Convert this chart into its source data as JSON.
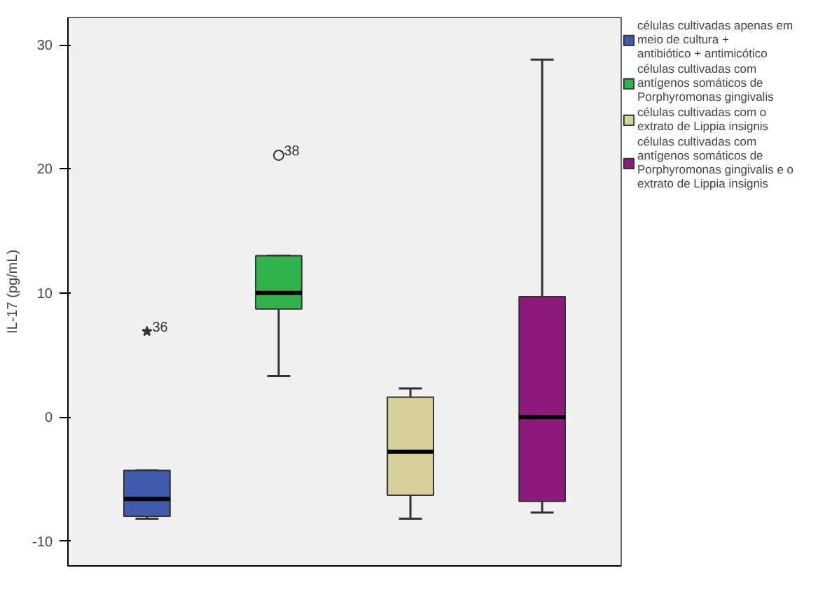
{
  "chart_data": {
    "type": "box",
    "ylabel": "IL-17 (pg/mL)",
    "categories": [
      null,
      null,
      null,
      null
    ],
    "ylim": [
      -12,
      32.2
    ],
    "yticks": [
      -10,
      0,
      10,
      20,
      30
    ],
    "grid": false,
    "legend": "right",
    "tick_labels": "y",
    "series": [
      {
        "name": "células cultivadas apenas em meio de cultura + antibiótico + antimicótico",
        "color": "#3f5bab",
        "marker": "star",
        "boxes": [
          {
            "low": -8.2,
            "q1": -8.0,
            "median": -6.6,
            "q3": -4.3,
            "high": -4.3,
            "outliers": [
              6.9
            ]
          },
          null,
          null,
          null
        ]
      },
      {
        "name": "células cultivadas com antígenos somáticos de Porphyromonas gingivalis",
        "color": "#2fb34a",
        "marker": "circle",
        "boxes": [
          null,
          {
            "low": 3.3,
            "q1": 8.7,
            "median": 10.0,
            "q3": 13.0,
            "high": 13.0,
            "outliers": [
              21.1
            ]
          },
          null,
          null
        ]
      },
      {
        "name": "células cultivadas com o extrato de Lippia insignis",
        "color": "#d6d09a",
        "boxes": [
          null,
          null,
          {
            "low": -8.2,
            "q1": -6.3,
            "median": -2.8,
            "q3": 1.6,
            "high": 2.3
          },
          null
        ]
      },
      {
        "name": "células cultivadas com antígenos somáticos de Porphyromonas gingivalis e o extrato de Lippia insignis",
        "color": "#8b1a7a",
        "boxes": [
          null,
          null,
          null,
          {
            "low": -7.7,
            "q1": -6.8,
            "median": 0.0,
            "q3": 9.7,
            "high": 28.8
          }
        ]
      }
    ],
    "annotations": [
      "36",
      "38"
    ]
  }
}
